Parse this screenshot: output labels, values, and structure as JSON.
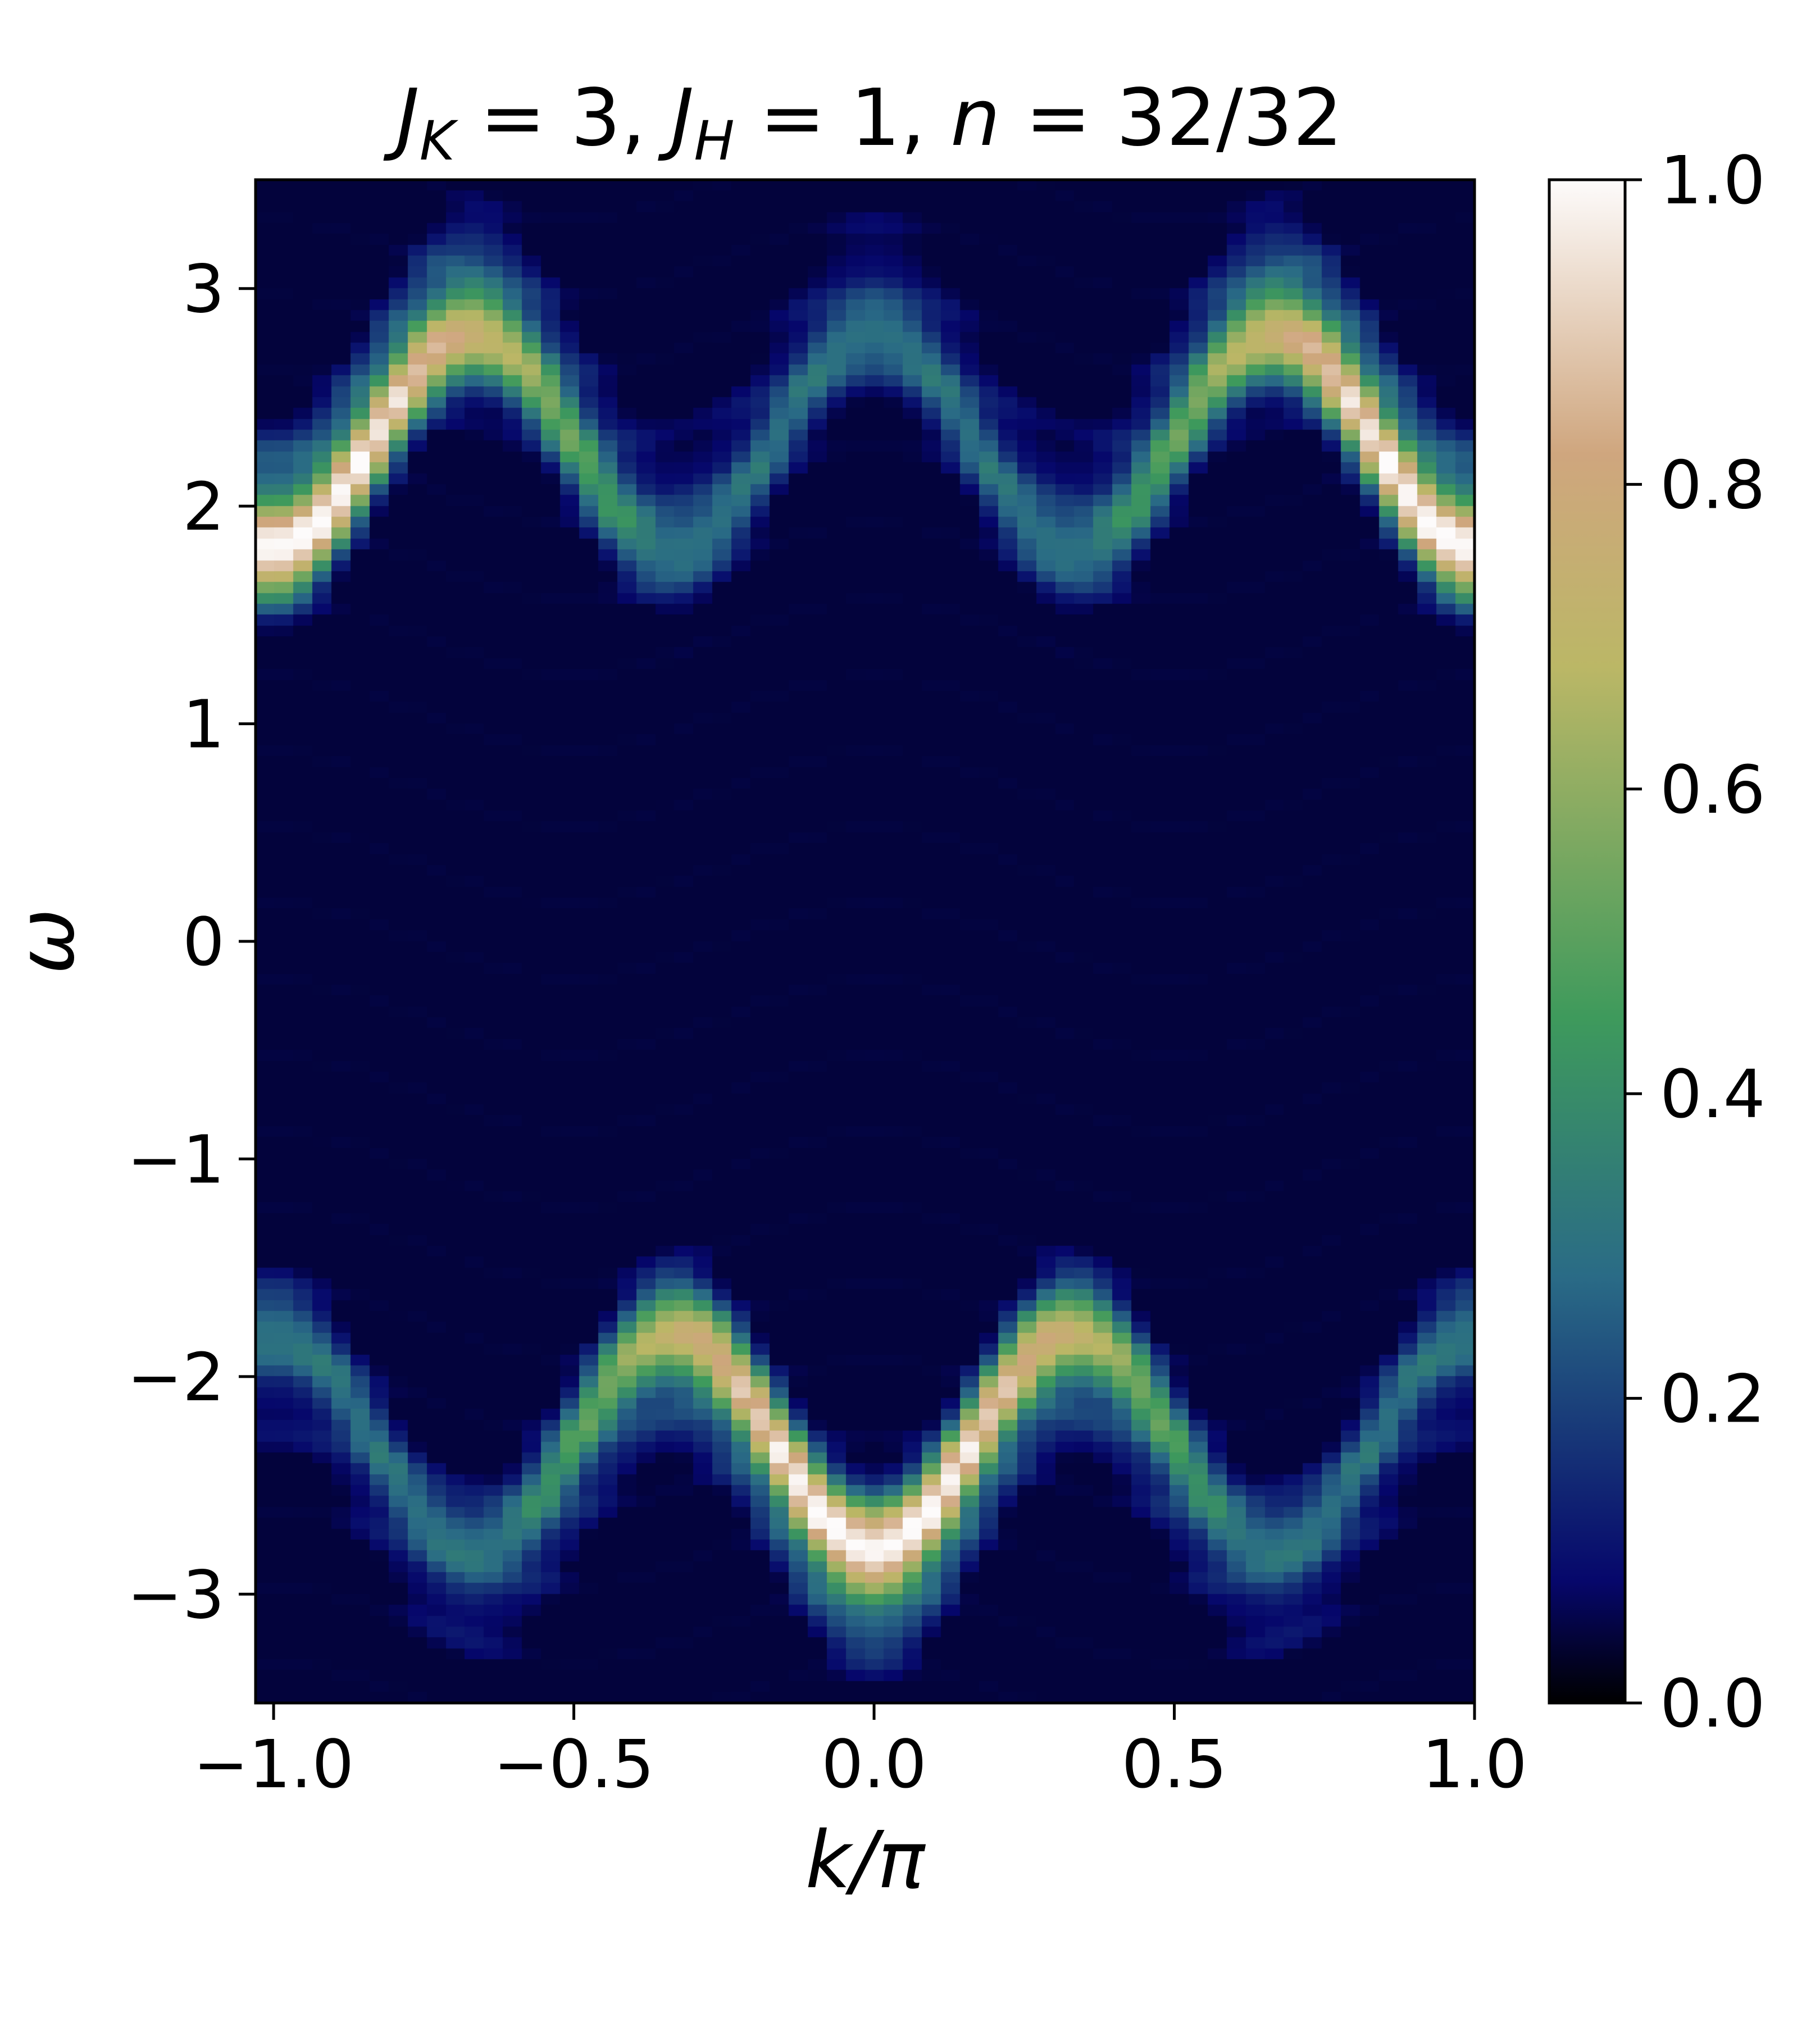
{
  "chart_data": {
    "type": "heatmap",
    "title": "J_K = 3, J_H = 1, n = 32/32",
    "title_parts": {
      "jk_symbol": "J",
      "jk_sub": "K",
      "jk_eq": " = 3, ",
      "jh_symbol": "J",
      "jh_sub": "H",
      "jh_eq": " = 1, ",
      "n_symbol": "n",
      "n_eq": " = 32/32"
    },
    "xlabel": "k/π",
    "ylabel": "ω",
    "xlim": [
      -1.03,
      1.0
    ],
    "ylim": [
      -3.5,
      3.5
    ],
    "x_ticks": [
      -1.0,
      -0.5,
      0.0,
      0.5,
      1.0
    ],
    "x_tick_labels": [
      "−1.0",
      "−0.5",
      "0.0",
      "0.5",
      "1.0"
    ],
    "y_ticks": [
      3,
      2,
      1,
      0,
      -1,
      -2,
      -3
    ],
    "y_tick_labels": [
      "3",
      "2",
      "1",
      "0",
      "−1",
      "−2",
      "−3"
    ],
    "colorbar": {
      "range": [
        0.0,
        1.0
      ],
      "ticks": [
        1.0,
        0.8,
        0.6,
        0.4,
        0.2,
        0.0
      ],
      "tick_labels": [
        "1.0",
        "0.8",
        "0.6",
        "0.4",
        "0.2",
        "0.0"
      ],
      "colormap": "gist_earth",
      "colormap_stops": [
        "#000000",
        "#06076b",
        "#2a6b86",
        "#3e9a5c",
        "#bbb766",
        "#cfa67e",
        "#fdfbfb"
      ]
    },
    "bands": [
      {
        "name": "",
        "dispersion": "omega = 2.3 + 0.5*cos(3*pi*k)",
        "peak_intensity": 1.0,
        "bright_region": "|k| > 0.4"
      },
      {
        "name": "",
        "dispersion": "omega = -(2.3 + 0.5*cos(3*pi*k))",
        "peak_intensity": 1.0,
        "bright_region": "|k| < 0.6"
      }
    ],
    "grid": false,
    "legend": "none"
  }
}
